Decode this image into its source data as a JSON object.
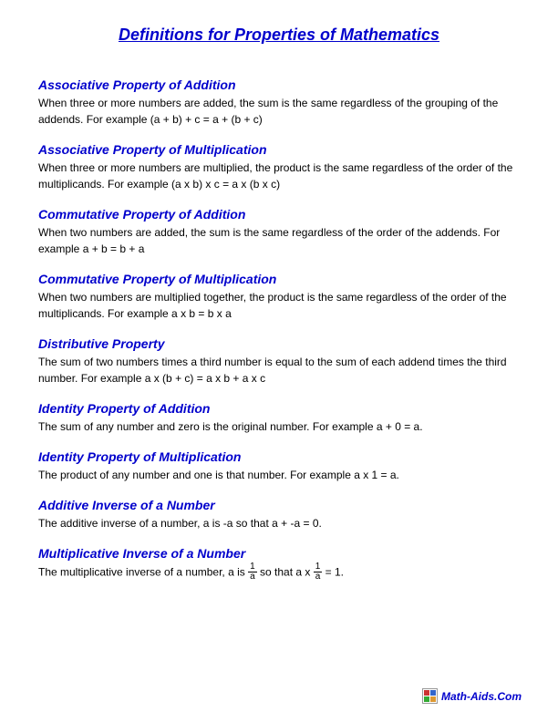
{
  "page": {
    "title": "Definitions for Properties of Mathematics",
    "title_color": "#0000cc",
    "body_color": "#000000",
    "background_color": "#ffffff"
  },
  "sections": [
    {
      "heading": "Associative Property of Addition",
      "body": "When three or more numbers are added, the sum is the same regardless of the grouping of the addends. For example (a + b) + c = a + (b + c)"
    },
    {
      "heading": "Associative Property of Multiplication",
      "body": "When three or more numbers are multiplied, the product is the same regardless of the order of the multiplicands. For example (a x b) x c = a x (b x c)"
    },
    {
      "heading": "Commutative Property of Addition",
      "body": "When two numbers are added, the sum is the same regardless of the order of the addends. For example a + b = b + a"
    },
    {
      "heading": "Commutative Property of Multiplication",
      "body": "When two numbers are multiplied together, the product is the same regardless of the order of the multiplicands. For example a x b = b x a"
    },
    {
      "heading": "Distributive Property",
      "body": "The sum of two numbers times a third number is equal to the sum of each addend times the third number. For example a x (b + c) = a x b + a x c"
    },
    {
      "heading": "Identity Property of Addition",
      "body": "The sum of any number and zero is the original number. For example a + 0 = a."
    },
    {
      "heading": "Identity Property of Multiplication",
      "body": "The product of any number and one is that number. For example a x 1 = a."
    },
    {
      "heading": "Additive Inverse of a Number",
      "body": "The additive inverse of a number, a is -a so that a + -a = 0."
    },
    {
      "heading": "Multiplicative Inverse of a Number",
      "body_pre": "The multiplicative inverse of a number, a is ",
      "body_mid": "  so that  a x ",
      "body_post": " = 1.",
      "fraction_num": "1",
      "fraction_den": "a"
    }
  ],
  "footer": {
    "text": "Math-Aids.Com",
    "logo_colors": [
      "#cc3333",
      "#3366cc",
      "#33aa33",
      "#dd9933"
    ]
  }
}
